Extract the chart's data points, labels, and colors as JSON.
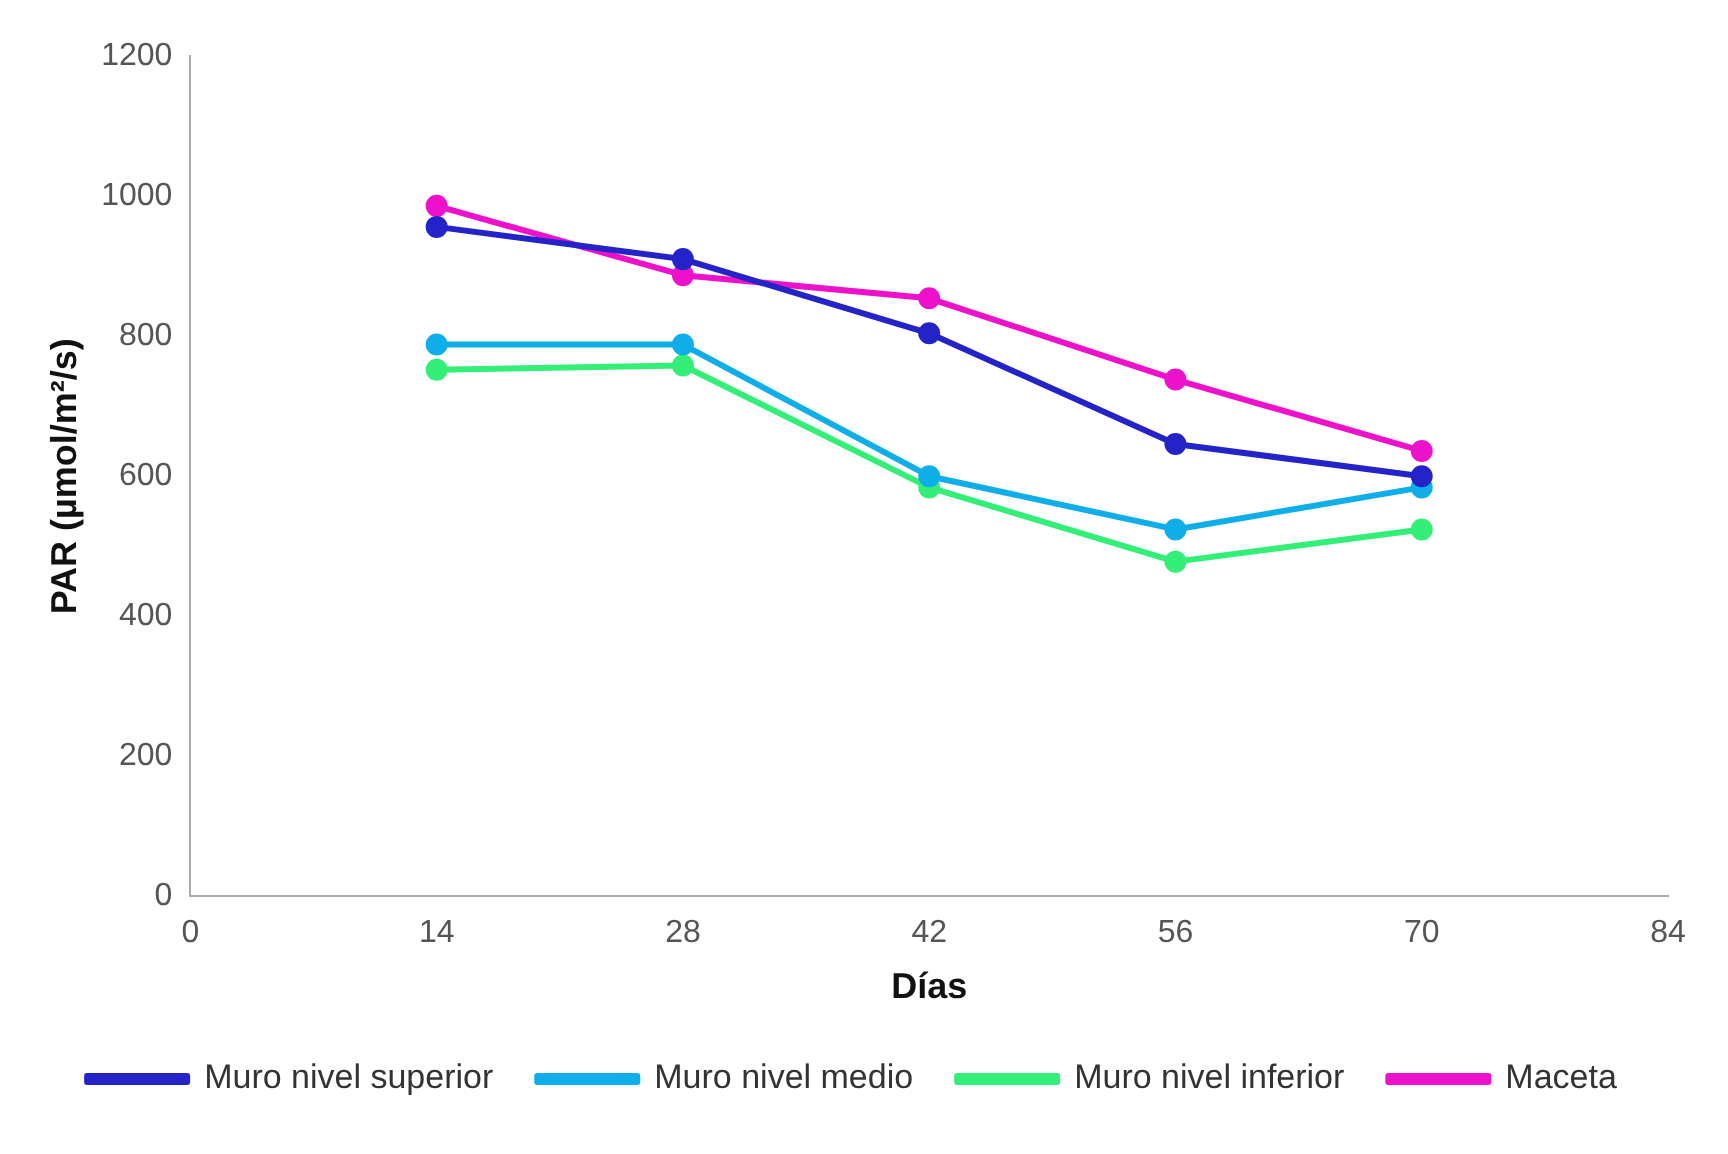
{
  "chart_data": {
    "type": "line",
    "xlabel": "Días",
    "ylabel": "PAR (µmol/m²/s)",
    "x": [
      14,
      28,
      42,
      56,
      70
    ],
    "series": [
      {
        "name": "Muro nivel superior",
        "color": "#2323c8",
        "values": [
          956,
          910,
          804,
          646,
          600
        ]
      },
      {
        "name": "Muro nivel medio",
        "color": "#10aee8",
        "values": [
          788,
          788,
          600,
          524,
          584
        ]
      },
      {
        "name": "Muro nivel inferior",
        "color": "#33ee77",
        "values": [
          752,
          758,
          584,
          478,
          524
        ]
      },
      {
        "name": "Maceta",
        "color": "#ee11cc",
        "values": [
          986,
          887,
          854,
          738,
          636
        ]
      }
    ],
    "xlim": [
      0,
      84
    ],
    "xticks": [
      0,
      14,
      28,
      42,
      56,
      70,
      84
    ],
    "ylim": [
      0,
      1200
    ],
    "yticks": [
      0,
      200,
      400,
      600,
      800,
      1000,
      1200
    ],
    "grid": false,
    "legend": "bottom",
    "marker": "circle",
    "line_style": "solid"
  }
}
